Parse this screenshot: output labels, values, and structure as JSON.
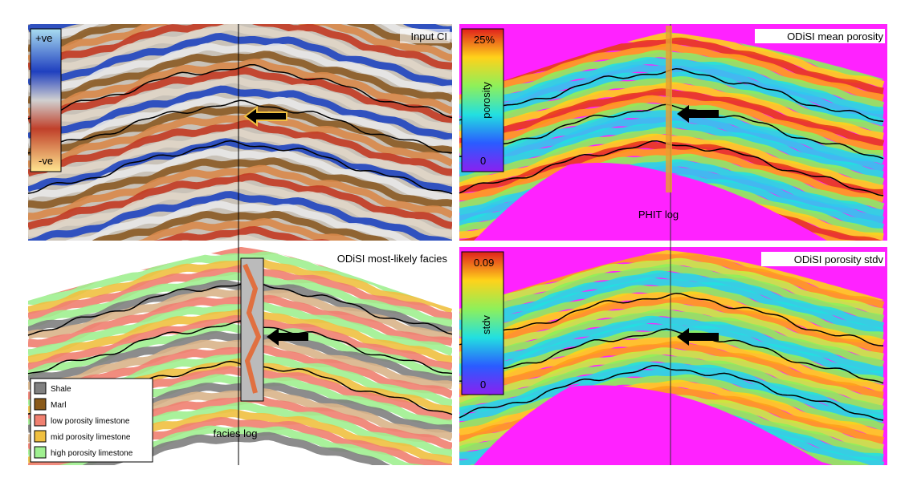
{
  "panels": [
    {
      "title": "Input CI",
      "colorbar": {
        "top": "+ve",
        "bottom": "-ve"
      }
    },
    {
      "title": "ODiSI mean porosity",
      "colorbar": {
        "top": "25%",
        "label": "porosity",
        "bottom": "0"
      },
      "annotation": "PHIT log"
    },
    {
      "title": "ODiSI most-likely facies",
      "annotation": "facies log",
      "legend": [
        "Shale",
        "Marl",
        "low porosity limestone",
        "mid porosity limestone",
        "high porosity limestone"
      ]
    },
    {
      "title": "ODiSI porosity stdv",
      "colorbar": {
        "top": "0.09",
        "label": "stdv",
        "bottom": "0"
      }
    }
  ]
}
